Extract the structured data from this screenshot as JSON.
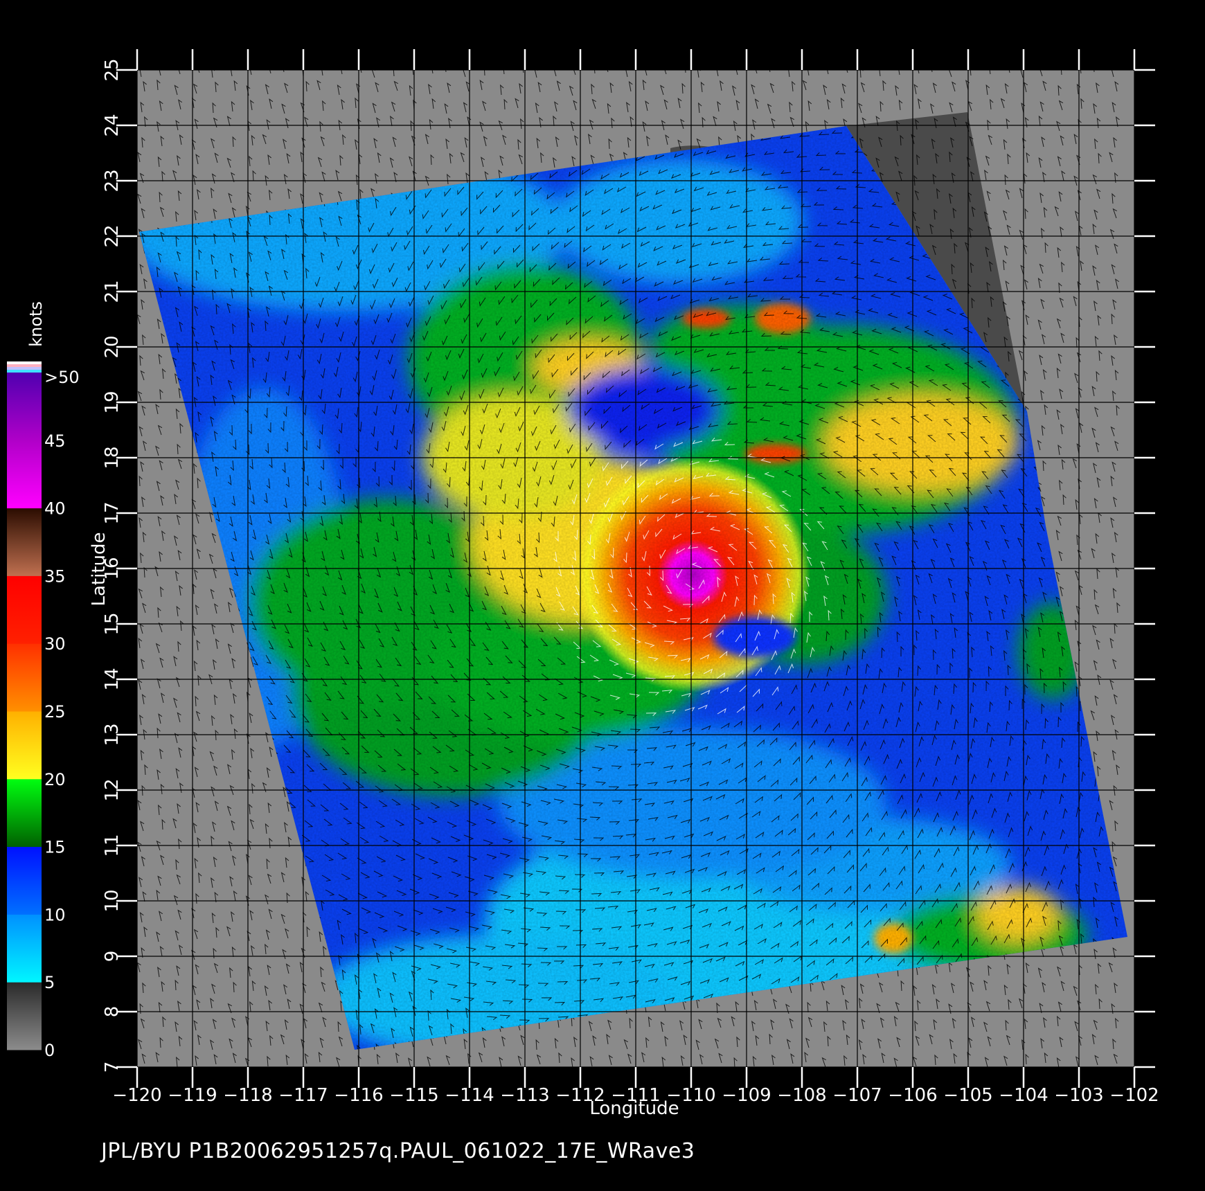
{
  "colorbar": {
    "unit": "knots",
    "labels": [
      ">50",
      "45",
      "40",
      "35",
      "30",
      "25",
      "20",
      "15",
      "10",
      "5",
      "0"
    ],
    "bands": [
      {
        "from": 0,
        "to": 5,
        "colors": [
          "#8c8c8c",
          "#2a2a2a"
        ]
      },
      {
        "from": 5,
        "to": 10,
        "colors": [
          "#00f6ff",
          "#0090ff"
        ]
      },
      {
        "from": 10,
        "to": 15,
        "colors": [
          "#0070ff",
          "#0010ff"
        ]
      },
      {
        "from": 15,
        "to": 20,
        "colors": [
          "#006000",
          "#00ff10"
        ]
      },
      {
        "from": 20,
        "to": 25,
        "colors": [
          "#ffff20",
          "#ffb000"
        ]
      },
      {
        "from": 25,
        "to": 30,
        "colors": [
          "#ff9000",
          "#ff3000"
        ]
      },
      {
        "from": 30,
        "to": 35,
        "colors": [
          "#ff2000",
          "#ff0000"
        ]
      },
      {
        "from": 35,
        "to": 40,
        "colors": [
          "#c07050",
          "#2a0c00"
        ]
      },
      {
        "from": 40,
        "to": 45,
        "colors": [
          "#ff00ff",
          "#b000c8"
        ]
      },
      {
        "from": 45,
        "to": 50,
        "colors": [
          "#b000c8",
          "#5000b0"
        ]
      }
    ]
  },
  "axes": {
    "xlabel": "Longitude",
    "ylabel": "Latitude",
    "x_ticks": [
      "-120",
      "-119",
      "-118",
      "-117",
      "-116",
      "-115",
      "-114",
      "-113",
      "-112",
      "-111",
      "-110",
      "-109",
      "-108",
      "-107",
      "-106",
      "-105",
      "-104",
      "-103",
      "-102"
    ],
    "y_ticks": [
      "7",
      "8",
      "9",
      "10",
      "11",
      "12",
      "13",
      "14",
      "15",
      "16",
      "17",
      "18",
      "19",
      "20",
      "21",
      "22",
      "23",
      "24",
      "25"
    ],
    "x_range": [
      -120,
      -102
    ],
    "y_range": [
      7,
      25
    ]
  },
  "storm_center": {
    "lon": -110,
    "lat": 15.8
  },
  "colors": {
    "background": "#000000",
    "land_nodata": "#8a8a8a",
    "land_dark": "#4a4a4a",
    "grid": "#000000"
  },
  "footer": "JPL/BYU  P1B20062951257q.PAUL_061022_17E_WRave3"
}
